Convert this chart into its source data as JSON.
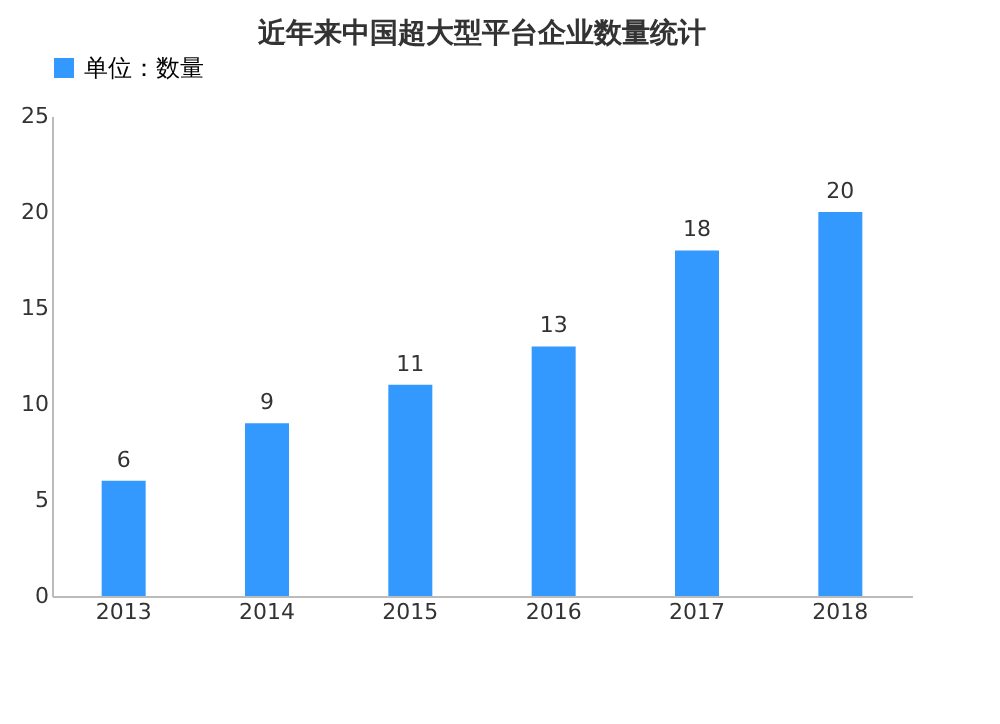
{
  "chart_data": {
    "type": "bar",
    "title": "近年来中国超大型平台企业数量统计",
    "categories": [
      "2013",
      "2014",
      "2015",
      "2016",
      "2017",
      "2018"
    ],
    "series": [
      {
        "name": "单位：数量",
        "color": "#3399ff",
        "values": [
          6,
          9,
          11,
          13,
          18,
          20
        ]
      }
    ],
    "ylim": [
      0,
      25
    ],
    "yticks": [
      0,
      5,
      10,
      15,
      20,
      25
    ],
    "data_labels": true,
    "legend": "top",
    "grid": false
  }
}
